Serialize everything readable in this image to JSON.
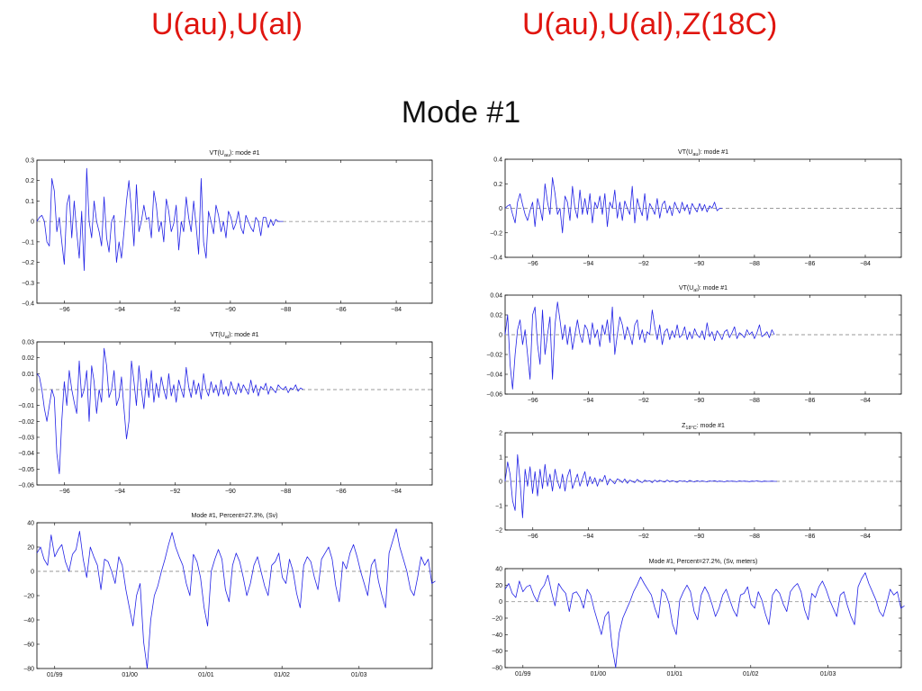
{
  "header": {
    "left_title": "U(au),U(al)",
    "right_title": "U(au),U(al),Z(18C)",
    "subtitle": "Mode #1"
  },
  "colors": {
    "header": "#e0150f",
    "series": "#2323e6",
    "zero_line": "#9a9a9a"
  },
  "chart_data": [
    {
      "id": "L1",
      "type": "line",
      "title": "VT(U",
      "title_sub": "au",
      "title_post": "): mode #1",
      "xlabel": "",
      "ylabel": "",
      "xlim": [
        -97,
        -82.7
      ],
      "ylim": [
        -0.4,
        0.3
      ],
      "xticks": [
        -96,
        -94,
        -92,
        -90,
        -88,
        -86,
        -84
      ],
      "xticklabels": [
        "−96",
        "−94",
        "−92",
        "−90",
        "−88",
        "−86",
        "−84"
      ],
      "yticks": [
        0.3,
        0.2,
        0.1,
        0,
        -0.1,
        -0.2,
        -0.3,
        -0.4
      ],
      "yticklabels": [
        "0.3",
        "0.2",
        "0.1",
        "0",
        "−0.1",
        "−0.2",
        "−0.3",
        "−0.4"
      ],
      "zero_line": true,
      "x_start": -97,
      "x_step": 0.09,
      "values": [
        0.0,
        0.02,
        0.03,
        0.0,
        -0.1,
        -0.12,
        0.21,
        0.15,
        -0.05,
        0.02,
        -0.1,
        -0.21,
        0.08,
        0.13,
        -0.08,
        0.1,
        -0.05,
        -0.18,
        0.05,
        -0.24,
        0.26,
        0.0,
        -0.08,
        0.1,
        0.0,
        -0.05,
        -0.12,
        0.12,
        -0.08,
        -0.15,
        0.0,
        0.03,
        -0.2,
        -0.1,
        -0.18,
        -0.05,
        0.1,
        0.2,
        0.05,
        -0.12,
        0.18,
        -0.05,
        0.0,
        0.08,
        0.01,
        0.02,
        -0.08,
        0.15,
        0.08,
        -0.05,
        0.0,
        -0.1,
        0.11,
        0.05,
        -0.05,
        -0.01,
        0.08,
        -0.14,
        0.0,
        -0.05,
        0.12,
        0.02,
        -0.05,
        0.1,
        -0.02,
        -0.16,
        0.21,
        -0.1,
        -0.18,
        0.05,
        0.0,
        -0.06,
        0.08,
        0.03,
        -0.05,
        0.0,
        -0.08,
        0.05,
        0.02,
        -0.04,
        -0.01,
        0.05,
        -0.03,
        -0.06,
        0.03,
        0.0,
        -0.03,
        -0.05,
        0.02,
        0.0,
        -0.07,
        0.02,
        0.02,
        -0.03,
        0.01,
        -0.02,
        0.01,
        0.0,
        0.0,
        0.0
      ]
    },
    {
      "id": "L2",
      "type": "line",
      "title": "VT(U",
      "title_sub": "al",
      "title_post": "): mode #1",
      "xlabel": "",
      "ylabel": "",
      "xlim": [
        -97,
        -82.7
      ],
      "ylim": [
        -0.06,
        0.03
      ],
      "xticks": [
        -96,
        -94,
        -92,
        -90,
        -88,
        -86,
        -84
      ],
      "xticklabels": [
        "−96",
        "−94",
        "−92",
        "−90",
        "−88",
        "−86",
        "−84"
      ],
      "yticks": [
        0.03,
        0.02,
        0.01,
        0,
        -0.01,
        -0.02,
        -0.03,
        -0.04,
        -0.05,
        -0.06
      ],
      "yticklabels": [
        "0.03",
        "0.02",
        "0.01",
        "0",
        "−0.01",
        "−0.02",
        "−0.03",
        "−0.04",
        "−0.05",
        "−0.06"
      ],
      "zero_line": true,
      "x_start": -97,
      "x_step": 0.09,
      "values": [
        0.01,
        0.008,
        0.0,
        -0.012,
        -0.02,
        -0.01,
        0.0,
        -0.005,
        -0.04,
        -0.053,
        -0.02,
        0.005,
        -0.01,
        0.012,
        0.0,
        -0.008,
        -0.015,
        0.018,
        -0.005,
        0.0,
        0.012,
        -0.02,
        0.015,
        0.005,
        -0.015,
        0.0,
        -0.008,
        0.026,
        0.015,
        -0.005,
        0.0,
        0.012,
        -0.01,
        -0.005,
        0.008,
        -0.012,
        -0.031,
        -0.02,
        0.018,
        0.005,
        -0.01,
        0.015,
        0.0,
        -0.012,
        0.007,
        -0.005,
        0.012,
        -0.008,
        0.004,
        -0.005,
        0.008,
        0.0,
        -0.006,
        0.01,
        -0.004,
        0.003,
        -0.008,
        0.006,
        0.0,
        -0.005,
        0.014,
        0.002,
        -0.005,
        0.006,
        -0.003,
        0.004,
        -0.006,
        0.01,
        0.0,
        -0.004,
        0.005,
        -0.002,
        0.003,
        -0.004,
        0.006,
        -0.003,
        0.002,
        -0.004,
        0.005,
        0.0,
        -0.003,
        0.004,
        -0.002,
        0.003,
        0.0,
        -0.003,
        0.006,
        -0.002,
        0.003,
        -0.004,
        0.002,
        0.0,
        0.004,
        -0.003,
        0.002,
        0.0,
        -0.002,
        0.003,
        0.001,
        0.0,
        0.002,
        -0.002,
        0.001,
        0.0,
        0.003,
        -0.001,
        0.001,
        0.0
      ]
    },
    {
      "id": "L3",
      "type": "line",
      "title": "Mode #1, Percent=27.3%, (Sv)",
      "title_sub": "",
      "title_post": "",
      "xlabel": "",
      "ylabel": "",
      "xlim": [
        0,
        100
      ],
      "ylim": [
        -80,
        40
      ],
      "xticks": [
        4.5,
        23.5,
        42.8,
        62,
        81.5
      ],
      "xticklabels": [
        "01/99",
        "01/00",
        "01/01",
        "01/02",
        "01/03"
      ],
      "yticks": [
        40,
        20,
        0,
        -20,
        -40,
        -60,
        -80
      ],
      "yticklabels": [
        "40",
        "20",
        "0",
        "−20",
        "−40",
        "−60",
        "−80"
      ],
      "zero_line": true,
      "x_start": 0,
      "x_step": 0.9,
      "values": [
        15,
        20,
        10,
        5,
        30,
        12,
        18,
        22,
        8,
        0,
        14,
        18,
        33,
        10,
        -5,
        20,
        12,
        5,
        -15,
        10,
        8,
        0,
        -10,
        12,
        5,
        -15,
        -30,
        -45,
        -20,
        -10,
        -58,
        -83,
        -40,
        -20,
        -12,
        0,
        10,
        22,
        32,
        20,
        12,
        5,
        -10,
        -20,
        14,
        8,
        -5,
        -30,
        -45,
        0,
        10,
        18,
        10,
        -15,
        -25,
        5,
        15,
        8,
        -5,
        -20,
        -10,
        5,
        12,
        0,
        -12,
        -20,
        5,
        8,
        15,
        -5,
        -10,
        10,
        0,
        -18,
        -30,
        5,
        12,
        8,
        -5,
        -15,
        10,
        15,
        20,
        10,
        -12,
        -25,
        8,
        2,
        15,
        22,
        12,
        0,
        -10,
        -20,
        5,
        10,
        -8,
        -20,
        -30,
        15,
        25,
        35,
        20,
        10,
        0,
        -15,
        -20,
        -5,
        12,
        5,
        10,
        -10,
        -8
      ]
    },
    {
      "id": "R1",
      "type": "line",
      "title": "VT(U",
      "title_sub": "au",
      "title_post": "): mode #1",
      "xlabel": "",
      "ylabel": "",
      "xlim": [
        -97,
        -82.7
      ],
      "ylim": [
        -0.4,
        0.4
      ],
      "xticks": [
        -96,
        -94,
        -92,
        -90,
        -88,
        -86,
        -84
      ],
      "xticklabels": [
        "−96",
        "−94",
        "−92",
        "−90",
        "−88",
        "−86",
        "−84"
      ],
      "yticks": [
        0.4,
        0.2,
        0,
        -0.2,
        -0.4
      ],
      "yticklabels": [
        "0.4",
        "0.2",
        "0",
        "−0.2",
        "−0.4"
      ],
      "zero_line": true,
      "x_start": -97,
      "x_step": 0.09,
      "values": [
        0.0,
        0.02,
        0.03,
        -0.05,
        -0.12,
        0.05,
        0.12,
        0.03,
        -0.05,
        -0.1,
        -0.02,
        0.05,
        -0.15,
        0.08,
        0.0,
        -0.1,
        0.2,
        0.05,
        -0.05,
        0.25,
        0.12,
        -0.05,
        0.0,
        -0.2,
        0.1,
        0.05,
        -0.1,
        0.18,
        0.0,
        -0.08,
        0.15,
        -0.05,
        0.08,
        -0.05,
        0.12,
        -0.12,
        0.05,
        0.0,
        0.1,
        -0.05,
        0.12,
        -0.15,
        0.05,
        0.0,
        0.15,
        -0.08,
        0.05,
        -0.1,
        0.06,
        0.0,
        -0.05,
        0.18,
        -0.12,
        0.08,
        0.0,
        -0.06,
        0.12,
        -0.1,
        0.04,
        0.0,
        -0.05,
        0.08,
        -0.08,
        0.03,
        0.06,
        -0.04,
        0.02,
        -0.06,
        0.05,
        0.0,
        -0.04,
        0.05,
        -0.02,
        0.03,
        -0.05,
        0.04,
        0.0,
        -0.03,
        0.04,
        -0.02,
        0.03,
        -0.03,
        0.02,
        0.0,
        0.05,
        -0.02,
        0.0,
        0.0
      ]
    },
    {
      "id": "R2",
      "type": "line",
      "title": "VT(U",
      "title_sub": "al",
      "title_post": "): mode #1",
      "xlabel": "",
      "ylabel": "",
      "xlim": [
        -97,
        -82.7
      ],
      "ylim": [
        -0.06,
        0.04
      ],
      "xticks": [
        -96,
        -94,
        -92,
        -90,
        -88,
        -86,
        -84
      ],
      "xticklabels": [
        "−96",
        "−94",
        "−92",
        "−90",
        "−88",
        "−86",
        "−84"
      ],
      "yticks": [
        0.04,
        0.02,
        0,
        -0.02,
        -0.04,
        -0.06
      ],
      "yticklabels": [
        "0.04",
        "0.02",
        "0",
        "−0.02",
        "−0.04",
        "−0.06"
      ],
      "zero_line": true,
      "x_start": -97,
      "x_step": 0.09,
      "values": [
        0.0,
        0.02,
        -0.03,
        -0.055,
        -0.02,
        0.005,
        0.015,
        -0.01,
        0.005,
        -0.02,
        -0.045,
        0.02,
        0.028,
        -0.01,
        -0.03,
        0.025,
        -0.02,
        0.0,
        0.018,
        -0.045,
        0.01,
        0.033,
        0.015,
        -0.005,
        0.01,
        -0.01,
        0.008,
        -0.015,
        0.0,
        0.015,
        0.0,
        -0.008,
        0.01,
        0.005,
        -0.01,
        0.012,
        -0.003,
        0.005,
        -0.012,
        0.01,
        0.0,
        0.015,
        -0.008,
        0.028,
        -0.02,
        0.0,
        0.018,
        0.01,
        -0.005,
        0.008,
        0.0,
        -0.01,
        0.01,
        0.015,
        -0.005,
        0.005,
        -0.008,
        0.003,
        0.0,
        0.025,
        0.008,
        -0.005,
        0.01,
        -0.01,
        0.003,
        0.006,
        -0.005,
        0.004,
        -0.003,
        0.01,
        -0.003,
        0.0,
        0.008,
        -0.005,
        0.003,
        -0.004,
        0.006,
        0.0,
        -0.003,
        0.004,
        -0.005,
        0.012,
        -0.002,
        0.003,
        -0.006,
        0.004,
        0.0,
        -0.005,
        0.003,
        0.005,
        -0.003,
        0.002,
        0.008,
        -0.004,
        0.002,
        0.0,
        -0.003,
        0.005,
        0.0,
        0.003,
        -0.004,
        0.002,
        0.01,
        -0.002,
        0.0,
        0.003,
        -0.003,
        0.005,
        0.0
      ]
    },
    {
      "id": "R3",
      "type": "line",
      "title": "Z",
      "title_sub": "18°C",
      "title_post": ": mode #1",
      "xlabel": "",
      "ylabel": "",
      "xlim": [
        -97,
        -82.7
      ],
      "ylim": [
        -2,
        2
      ],
      "xticks": [
        -96,
        -94,
        -92,
        -90,
        -88,
        -86,
        -84
      ],
      "xticklabels": [
        "−96",
        "−94",
        "−92",
        "−90",
        "−88",
        "−86",
        "−84"
      ],
      "yticks": [
        2,
        1,
        0,
        -1,
        -2
      ],
      "yticklabels": [
        "2",
        "1",
        "0",
        "−1",
        "−2"
      ],
      "zero_line": true,
      "x_start": -97,
      "x_step": 0.09,
      "values": [
        0.0,
        0.8,
        0.3,
        -0.8,
        -1.2,
        1.1,
        0.0,
        -1.5,
        0.5,
        -0.2,
        0.6,
        -0.5,
        0.4,
        -0.6,
        0.5,
        -0.3,
        0.7,
        -0.2,
        0.3,
        -0.4,
        0.5,
        0.0,
        -0.3,
        0.3,
        -0.4,
        0.2,
        0.5,
        -0.3,
        0.0,
        0.3,
        -0.2,
        0.1,
        0.4,
        -0.2,
        0.2,
        -0.1,
        0.15,
        -0.2,
        0.1,
        0.0,
        0.25,
        -0.15,
        0.1,
        0.0,
        -0.1,
        0.1,
        0.05,
        -0.05,
        0.1,
        -0.08,
        0.05,
        0.0,
        -0.05,
        0.08,
        0.0,
        -0.05,
        0.05,
        0.0,
        0.03,
        -0.05,
        0.05,
        -0.02,
        0.04,
        0.0,
        -0.03,
        0.05,
        -0.02,
        0.03,
        0.0,
        -0.04,
        0.03,
        0.0,
        0.02,
        -0.03,
        0.04,
        0.0,
        -0.02,
        0.03,
        -0.01,
        0.02,
        0.0,
        -0.02,
        0.02,
        0.0,
        0.03,
        -0.01,
        0.01,
        0.0,
        -0.02,
        0.02,
        0.0,
        0.01,
        0.0,
        -0.01,
        0.02,
        0.0,
        0.01,
        0.0,
        -0.01,
        0.01,
        0.0,
        0.02,
        0.0,
        -0.01,
        0.01,
        0.0,
        0.0,
        0.01,
        0.0,
        0.0
      ]
    },
    {
      "id": "R4",
      "type": "line",
      "title": "Mode #1, Percent=27.2%, (Sv, meters)",
      "title_sub": "",
      "title_post": "",
      "xlabel": "",
      "ylabel": "",
      "xlim": [
        0,
        100
      ],
      "ylim": [
        -80,
        40
      ],
      "xticks": [
        4.5,
        23.5,
        42.8,
        62,
        81.5
      ],
      "xticklabels": [
        "01/99",
        "01/00",
        "01/01",
        "01/02",
        "01/03"
      ],
      "yticks": [
        40,
        20,
        0,
        -20,
        -40,
        -60,
        -80
      ],
      "yticklabels": [
        "40",
        "20",
        "0",
        "−20",
        "−40",
        "−60",
        "−80"
      ],
      "zero_line": true,
      "x_start": 0,
      "x_step": 0.9,
      "values": [
        15,
        22,
        10,
        5,
        25,
        12,
        18,
        20,
        8,
        0,
        14,
        20,
        32,
        12,
        -5,
        22,
        15,
        10,
        -12,
        10,
        12,
        5,
        -8,
        15,
        8,
        -10,
        -25,
        -40,
        -18,
        -12,
        -55,
        -82,
        -38,
        -20,
        -10,
        0,
        12,
        20,
        30,
        22,
        15,
        8,
        -8,
        -20,
        15,
        10,
        -3,
        -28,
        -40,
        2,
        12,
        20,
        12,
        -12,
        -22,
        8,
        18,
        10,
        -3,
        -18,
        -8,
        8,
        15,
        2,
        -10,
        -18,
        8,
        10,
        18,
        -3,
        -8,
        12,
        2,
        -15,
        -28,
        8,
        15,
        10,
        -3,
        -12,
        12,
        18,
        22,
        12,
        -10,
        -22,
        10,
        5,
        18,
        25,
        15,
        2,
        -8,
        -18,
        8,
        12,
        -5,
        -18,
        -28,
        18,
        28,
        35,
        22,
        12,
        2,
        -12,
        -18,
        -3,
        15,
        8,
        12,
        -8,
        -5
      ]
    }
  ]
}
